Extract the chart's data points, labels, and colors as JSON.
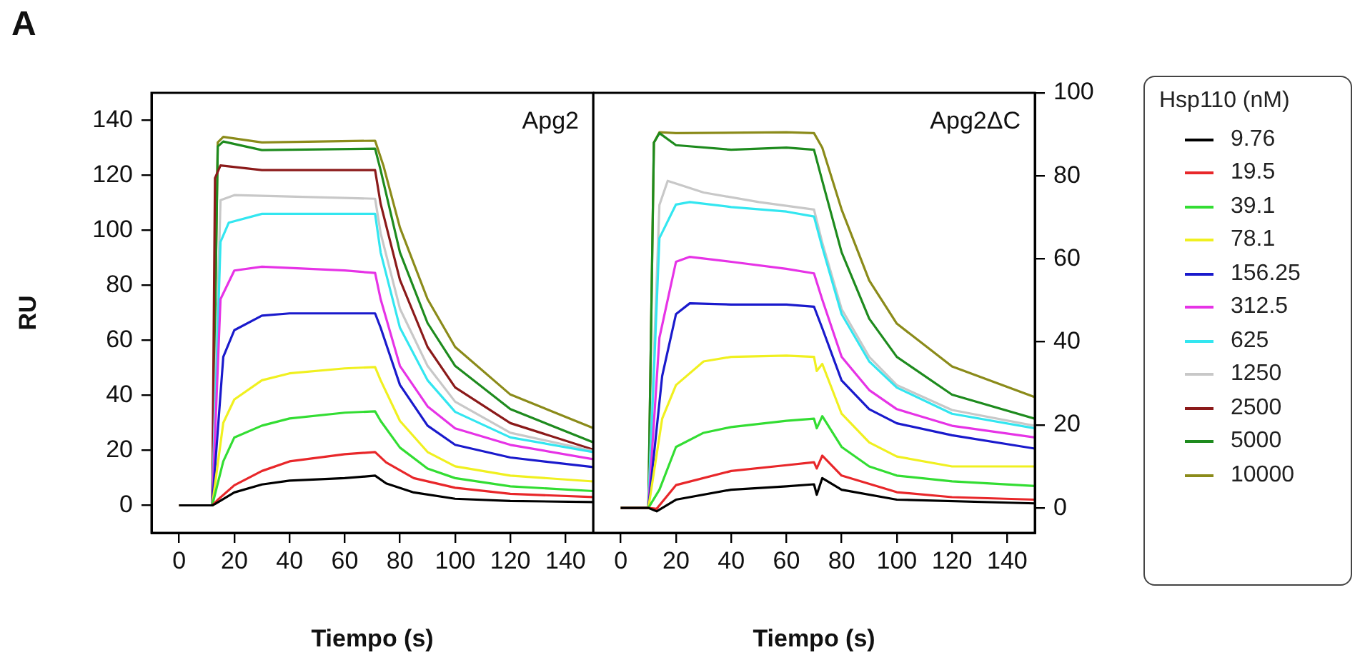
{
  "chart_data": [
    {
      "type": "line",
      "title": "A",
      "xlabel": "Tiempo (s)",
      "ylabel": "RU",
      "legend": "right",
      "legend_title": "Hsp110 (nM)",
      "annotations": [
        "Apg2"
      ],
      "xlim": [
        -10,
        150
      ],
      "xticks": [
        0,
        20,
        40,
        60,
        80,
        100,
        120,
        140
      ],
      "ylim": [
        -10,
        150
      ],
      "yticks": [
        0,
        20,
        40,
        60,
        80,
        100,
        120,
        140
      ],
      "grid": false,
      "series": [
        {
          "name": "9.76",
          "color": "#000000",
          "x": [
            0,
            12,
            13,
            20,
            30,
            40,
            60,
            71,
            75,
            85,
            100,
            120,
            150
          ],
          "values": [
            0,
            0,
            0.5,
            4.7,
            7.6,
            9,
            9.9,
            10.8,
            8,
            4.7,
            2.4,
            1.6,
            1.2
          ]
        },
        {
          "name": "19.5",
          "color": "#e8272a",
          "x": [
            0,
            12,
            14,
            20,
            30,
            40,
            60,
            71,
            75,
            85,
            100,
            120,
            150
          ],
          "values": [
            0,
            0,
            2,
            7.3,
            12.5,
            16,
            18.6,
            19.4,
            15.6,
            9.9,
            6.4,
            4.2,
            3
          ]
        },
        {
          "name": "39.1",
          "color": "#33dd33",
          "x": [
            0,
            12,
            16,
            20,
            30,
            40,
            60,
            71,
            73,
            80,
            90,
            100,
            120,
            150
          ],
          "values": [
            0,
            0,
            16,
            24.7,
            29,
            31.6,
            33.7,
            34.2,
            30.7,
            21,
            13.4,
            9.9,
            6.9,
            5.2
          ]
        },
        {
          "name": "78.1",
          "color": "#f0f020",
          "x": [
            0,
            12,
            16,
            20,
            30,
            40,
            60,
            71,
            73,
            80,
            90,
            100,
            120,
            150
          ],
          "values": [
            0,
            0,
            30,
            38.5,
            45.5,
            48,
            49.8,
            50.3,
            45.5,
            30.7,
            19.4,
            14.2,
            10.8,
            8.7
          ]
        },
        {
          "name": "156.25",
          "color": "#1a1acc",
          "x": [
            0,
            12,
            16,
            20,
            30,
            40,
            60,
            71,
            73,
            80,
            90,
            100,
            120,
            150
          ],
          "values": [
            0,
            0,
            54,
            63.7,
            69,
            69.8,
            69.8,
            69.8,
            64.6,
            43.8,
            29,
            22,
            17.4,
            13.9
          ]
        },
        {
          "name": "312.5",
          "color": "#e633e6",
          "x": [
            0,
            12,
            15,
            20,
            30,
            60,
            71,
            73,
            80,
            90,
            100,
            120,
            150
          ],
          "values": [
            0,
            0,
            75,
            85.4,
            86.8,
            85.4,
            84.5,
            75,
            50.7,
            36,
            28,
            22,
            16.8
          ]
        },
        {
          "name": "625",
          "color": "#33e6f0",
          "x": [
            0,
            12,
            15,
            18,
            30,
            60,
            71,
            73,
            80,
            90,
            100,
            120,
            150
          ],
          "values": [
            0,
            0,
            95.8,
            102.8,
            106,
            106,
            106,
            92,
            64.6,
            45.5,
            34,
            24.7,
            19.4
          ]
        },
        {
          "name": "1250",
          "color": "#c8c8c8",
          "x": [
            0,
            12,
            15,
            20,
            60,
            71,
            73,
            80,
            90,
            100,
            120,
            150
          ],
          "values": [
            0,
            0,
            111,
            112.8,
            111.8,
            111.5,
            99,
            71.5,
            50.7,
            37.7,
            26.4,
            19.8
          ]
        },
        {
          "name": "2500",
          "color": "#8b1a1a",
          "x": [
            0,
            12,
            13,
            15,
            30,
            71,
            73,
            80,
            90,
            100,
            120,
            150
          ],
          "values": [
            0,
            0,
            119,
            123.6,
            121.9,
            121.9,
            109.7,
            82,
            57.6,
            42.9,
            29.9,
            20.3
          ]
        },
        {
          "name": "5000",
          "color": "#1e8b1e",
          "x": [
            0,
            12,
            14,
            16,
            30,
            71,
            73,
            80,
            90,
            100,
            120,
            150
          ],
          "values": [
            0,
            0,
            130.5,
            132.3,
            129.2,
            129.7,
            121.9,
            92,
            66.3,
            50.7,
            35,
            22.9
          ]
        },
        {
          "name": "10000",
          "color": "#8b8b1a",
          "x": [
            0,
            12,
            14,
            16,
            30,
            71,
            74,
            80,
            90,
            100,
            120,
            150
          ],
          "values": [
            0,
            0,
            132,
            134,
            132,
            132.6,
            123.6,
            101,
            75,
            57.6,
            40.3,
            28.1
          ]
        }
      ]
    },
    {
      "type": "line",
      "xlabel": "Tiempo (s)",
      "annotations": [
        "Apg2ΔC"
      ],
      "xlim": [
        -10,
        150
      ],
      "xticks": [
        0,
        20,
        40,
        60,
        80,
        100,
        120,
        140
      ],
      "ylim": [
        -6,
        100
      ],
      "yticks": [
        0,
        20,
        40,
        60,
        80,
        100
      ],
      "grid": false,
      "series": [
        {
          "color": "#000000",
          "x": [
            0,
            10,
            13,
            20,
            40,
            60,
            70,
            71,
            73,
            80,
            100,
            150
          ],
          "values": [
            0,
            0,
            -0.8,
            2,
            4.4,
            5.2,
            5.7,
            3.2,
            7.2,
            4.4,
            2,
            1.1
          ]
        },
        {
          "color": "#e8272a",
          "x": [
            0,
            10,
            13,
            20,
            40,
            60,
            70,
            71,
            73,
            80,
            100,
            120,
            150
          ],
          "values": [
            0,
            0,
            -0.2,
            5.5,
            8.9,
            10.3,
            11,
            9.5,
            12.6,
            7.8,
            3.8,
            2.6,
            2
          ]
        },
        {
          "color": "#33dd33",
          "x": [
            0,
            10,
            14,
            20,
            30,
            40,
            60,
            70,
            71,
            73,
            80,
            90,
            100,
            120,
            150
          ],
          "values": [
            0,
            0,
            4.4,
            14.7,
            18.1,
            19.5,
            21,
            21.5,
            19.2,
            22.1,
            14.7,
            10,
            7.8,
            6.4,
            5.3
          ]
        },
        {
          "color": "#f0f020",
          "x": [
            0,
            10,
            15,
            20,
            30,
            40,
            60,
            70,
            71,
            73,
            80,
            90,
            100,
            120,
            150
          ],
          "values": [
            0,
            0,
            21.5,
            29.6,
            35.3,
            36.4,
            36.7,
            36.4,
            33,
            34.7,
            22.7,
            15.8,
            12.4,
            10,
            10
          ]
        },
        {
          "color": "#1a1acc",
          "x": [
            0,
            10,
            15,
            20,
            25,
            40,
            60,
            70,
            73,
            80,
            90,
            100,
            120,
            150
          ],
          "values": [
            0,
            0,
            31.8,
            46.7,
            49.3,
            49,
            49,
            48.5,
            43.3,
            30.7,
            23.8,
            20.4,
            17.5,
            14.3
          ]
        },
        {
          "color": "#e633e6",
          "x": [
            0,
            10,
            14,
            20,
            25,
            40,
            60,
            70,
            73,
            80,
            90,
            100,
            120,
            150
          ],
          "values": [
            0,
            0,
            41,
            59.3,
            60.5,
            59.3,
            57.6,
            56.5,
            50.2,
            36.4,
            28.4,
            23.8,
            19.8,
            17
          ]
        },
        {
          "color": "#33e6f0",
          "x": [
            0,
            10,
            14,
            20,
            25,
            40,
            60,
            70,
            73,
            80,
            90,
            100,
            120,
            150
          ],
          "values": [
            0,
            0,
            65,
            73.1,
            73.7,
            72.5,
            71.4,
            70.2,
            62.8,
            46.7,
            35.3,
            29,
            22.7,
            19.2
          ]
        },
        {
          "color": "#c8c8c8",
          "x": [
            0,
            10,
            14,
            17,
            30,
            50,
            70,
            73,
            80,
            90,
            100,
            120,
            150
          ],
          "values": [
            0,
            0,
            73,
            78.8,
            76,
            73.7,
            71.9,
            63.9,
            47.9,
            36.4,
            29.6,
            23.6,
            19.8
          ]
        },
        {
          "color": "#1e8b1e",
          "x": [
            0,
            10,
            12,
            14,
            20,
            40,
            60,
            70,
            73,
            80,
            90,
            100,
            120,
            150
          ],
          "values": [
            0,
            0,
            88,
            90.3,
            87.4,
            86.3,
            86.8,
            86.3,
            78.8,
            61.6,
            45.6,
            36.4,
            27.3,
            21.5
          ]
        },
        {
          "color": "#8b8b1a",
          "x": [
            0,
            10,
            12,
            14,
            20,
            60,
            70,
            73,
            80,
            90,
            100,
            120,
            150
          ],
          "values": [
            0,
            0,
            88,
            90.5,
            90.3,
            90.5,
            90.3,
            86.8,
            71.9,
            54.8,
            44.4,
            34.1,
            26.7
          ]
        }
      ]
    }
  ]
}
